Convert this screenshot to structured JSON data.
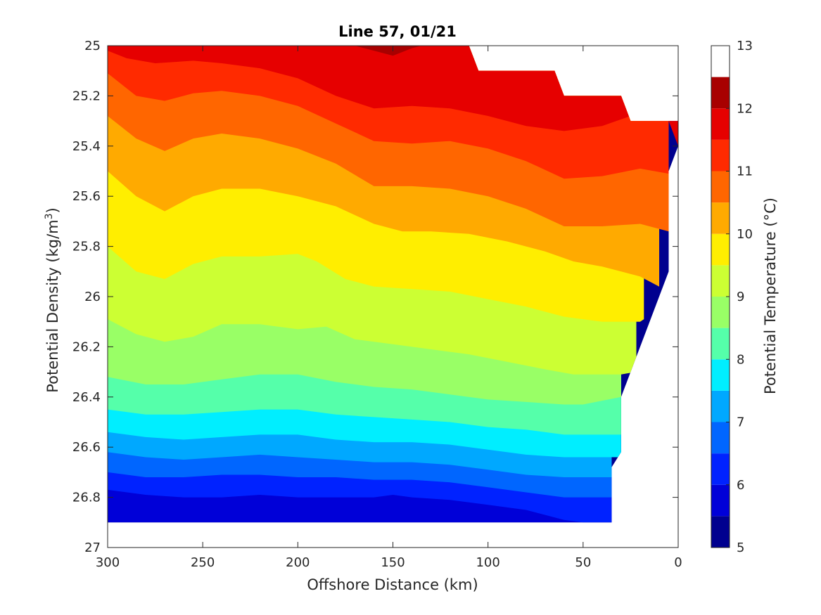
{
  "chart_data": {
    "type": "contourf",
    "title": "Line 57, 01/21",
    "xlabel": "Offshore Distance (km)",
    "ylabel_main": "Potential Density (kg/m",
    "ylabel_sup": "3",
    "ylabel_close": ")",
    "colorbar_label": "Potential Temperature (°C)",
    "x_axis": {
      "reversed": true,
      "lim": [
        0,
        300
      ],
      "ticks": [
        300,
        250,
        200,
        150,
        100,
        50,
        0
      ]
    },
    "y_axis": {
      "reversed": true,
      "lim": [
        25,
        27
      ],
      "ticks": [
        25,
        25.2,
        25.4,
        25.6,
        25.8,
        26,
        26.2,
        26.4,
        26.6,
        26.8,
        27
      ],
      "tick_labels": [
        "25",
        "25.2",
        "25.4",
        "25.6",
        "25.8",
        "26",
        "26.2",
        "26.4",
        "26.6",
        "26.8",
        "27"
      ]
    },
    "colorbar": {
      "range": [
        5,
        13
      ],
      "ticks": [
        5,
        6,
        7,
        8,
        9,
        10,
        11,
        12,
        13
      ],
      "levels": [
        5,
        5.5,
        6,
        6.5,
        7,
        7.5,
        8,
        8.5,
        9,
        9.5,
        10,
        10.5,
        11,
        11.5,
        12,
        12.5,
        13
      ],
      "colors": [
        "#00008f",
        "#0000d8",
        "#0022ff",
        "#0066ff",
        "#00a8ff",
        "#00eeff",
        "#55ffaa",
        "#99ff66",
        "#ccff33",
        "#ffee00",
        "#ffaa00",
        "#ff6600",
        "#ff2a00",
        "#e60000",
        "#a80000"
      ]
    },
    "data_extent": {
      "x": [
        300,
        290,
        270,
        250,
        230,
        210,
        190,
        170,
        150,
        130,
        110,
        105,
        90,
        65,
        60,
        50,
        30,
        25,
        5,
        0
      ],
      "top_density": [
        25,
        25,
        25,
        25,
        25,
        25,
        25,
        25,
        25,
        25,
        25,
        25.1,
        25.1,
        25.1,
        25.2,
        25.2,
        25.2,
        25.3,
        25.3,
        25.3
      ],
      "bottom": [
        {
          "x": 300,
          "density": 26.9
        },
        {
          "x": 35,
          "density": 26.9
        },
        {
          "x": 35,
          "density": 26.68
        },
        {
          "x": 30,
          "density": 26.62
        },
        {
          "x": 30,
          "density": 26.4
        },
        {
          "x": 5,
          "density": 25.9
        },
        {
          "x": 5,
          "density": 25.5
        },
        {
          "x": 0,
          "density": 25.4
        }
      ]
    },
    "isolines": [
      {
        "level": 5.5,
        "x": [
          300,
          290,
          270,
          250,
          230,
          210,
          190,
          170,
          150,
          130,
          110,
          90,
          70,
          50,
          35
        ],
        "density": [
          26.9,
          26.9,
          26.9,
          26.9,
          26.9,
          26.9,
          26.9,
          26.9,
          26.9,
          26.9,
          26.9,
          26.9,
          26.9,
          26.9,
          26.9
        ]
      },
      {
        "level": 6,
        "x": [
          300,
          280,
          260,
          240,
          220,
          200,
          180,
          160,
          150,
          140,
          120,
          100,
          80,
          60,
          50,
          35
        ],
        "density": [
          26.77,
          26.79,
          26.8,
          26.8,
          26.79,
          26.8,
          26.8,
          26.8,
          26.79,
          26.8,
          26.81,
          26.83,
          26.85,
          26.89,
          26.9,
          26.9
        ]
      },
      {
        "level": 6.5,
        "x": [
          300,
          280,
          260,
          240,
          220,
          200,
          180,
          160,
          140,
          120,
          100,
          80,
          60,
          50,
          35
        ],
        "density": [
          26.7,
          26.72,
          26.72,
          26.71,
          26.71,
          26.72,
          26.72,
          26.73,
          26.73,
          26.74,
          26.76,
          26.78,
          26.8,
          26.8,
          26.8
        ]
      },
      {
        "level": 7,
        "x": [
          300,
          280,
          260,
          240,
          220,
          200,
          180,
          160,
          140,
          120,
          100,
          80,
          60,
          50,
          35
        ],
        "density": [
          26.62,
          26.64,
          26.65,
          26.64,
          26.63,
          26.64,
          26.65,
          26.66,
          26.66,
          26.67,
          26.69,
          26.71,
          26.72,
          26.72,
          26.72
        ]
      },
      {
        "level": 7.5,
        "x": [
          300,
          280,
          260,
          240,
          220,
          200,
          180,
          160,
          140,
          120,
          100,
          80,
          60,
          50,
          30
        ],
        "density": [
          26.54,
          26.56,
          26.57,
          26.56,
          26.55,
          26.55,
          26.57,
          26.58,
          26.58,
          26.59,
          26.61,
          26.63,
          26.64,
          26.64,
          26.64
        ]
      },
      {
        "level": 8,
        "x": [
          300,
          280,
          260,
          240,
          220,
          200,
          180,
          160,
          140,
          120,
          100,
          80,
          60,
          50,
          30
        ],
        "density": [
          26.45,
          26.47,
          26.47,
          26.46,
          26.45,
          26.45,
          26.47,
          26.48,
          26.49,
          26.5,
          26.52,
          26.53,
          26.55,
          26.55,
          26.55
        ]
      },
      {
        "level": 8.5,
        "x": [
          300,
          280,
          260,
          240,
          220,
          200,
          180,
          160,
          140,
          120,
          100,
          80,
          60,
          50,
          30
        ],
        "density": [
          26.32,
          26.35,
          26.35,
          26.33,
          26.31,
          26.31,
          26.34,
          26.36,
          26.37,
          26.39,
          26.41,
          26.42,
          26.43,
          26.43,
          26.4
        ]
      },
      {
        "level": 9,
        "x": [
          300,
          285,
          270,
          255,
          240,
          220,
          200,
          185,
          170,
          150,
          130,
          110,
          90,
          70,
          55,
          40,
          30,
          22
        ],
        "density": [
          26.09,
          26.15,
          26.18,
          26.16,
          26.11,
          26.11,
          26.13,
          26.12,
          26.17,
          26.19,
          26.21,
          26.23,
          26.26,
          26.29,
          26.31,
          26.31,
          26.31,
          26.3
        ]
      },
      {
        "level": 9.5,
        "x": [
          300,
          285,
          270,
          255,
          240,
          220,
          200,
          190,
          175,
          160,
          140,
          120,
          100,
          80,
          60,
          40,
          20,
          18
        ],
        "density": [
          25.8,
          25.9,
          25.93,
          25.87,
          25.84,
          25.84,
          25.83,
          25.86,
          25.93,
          25.96,
          25.97,
          25.98,
          26.01,
          26.04,
          26.08,
          26.1,
          26.1,
          26.09
        ]
      },
      {
        "level": 10,
        "x": [
          300,
          285,
          270,
          255,
          240,
          220,
          200,
          180,
          160,
          145,
          130,
          110,
          90,
          70,
          55,
          40,
          20,
          10
        ],
        "density": [
          25.5,
          25.6,
          25.66,
          25.6,
          25.57,
          25.57,
          25.6,
          25.64,
          25.71,
          25.74,
          25.74,
          25.75,
          25.78,
          25.82,
          25.86,
          25.88,
          25.92,
          25.96
        ]
      },
      {
        "level": 10.5,
        "x": [
          300,
          285,
          270,
          255,
          240,
          220,
          200,
          180,
          160,
          140,
          120,
          100,
          80,
          60,
          40,
          20,
          5
        ],
        "density": [
          25.28,
          25.37,
          25.42,
          25.37,
          25.35,
          25.37,
          25.41,
          25.47,
          25.56,
          25.56,
          25.57,
          25.6,
          25.65,
          25.72,
          25.72,
          25.71,
          25.74
        ]
      },
      {
        "level": 11,
        "x": [
          300,
          285,
          270,
          255,
          240,
          220,
          200,
          180,
          160,
          140,
          120,
          100,
          80,
          60,
          40,
          20,
          5
        ],
        "density": [
          25.11,
          25.2,
          25.22,
          25.19,
          25.18,
          25.2,
          25.24,
          25.31,
          25.38,
          25.39,
          25.38,
          25.41,
          25.46,
          25.53,
          25.52,
          25.49,
          25.51
        ]
      },
      {
        "level": 11.5,
        "x": [
          300,
          290,
          275,
          255,
          240,
          220,
          200,
          180,
          160,
          140,
          120,
          100,
          80,
          60,
          40,
          25,
          20,
          5,
          0
        ],
        "density": [
          25.02,
          25.05,
          25.07,
          25.06,
          25.07,
          25.09,
          25.13,
          25.2,
          25.25,
          25.24,
          25.25,
          25.28,
          25.32,
          25.34,
          25.32,
          25.28,
          25.25,
          25.3,
          25.4
        ]
      },
      {
        "level": 12,
        "x": [
          170,
          160,
          150,
          140,
          135
        ],
        "density": [
          25,
          25.02,
          25.04,
          25.01,
          25
        ]
      }
    ]
  }
}
